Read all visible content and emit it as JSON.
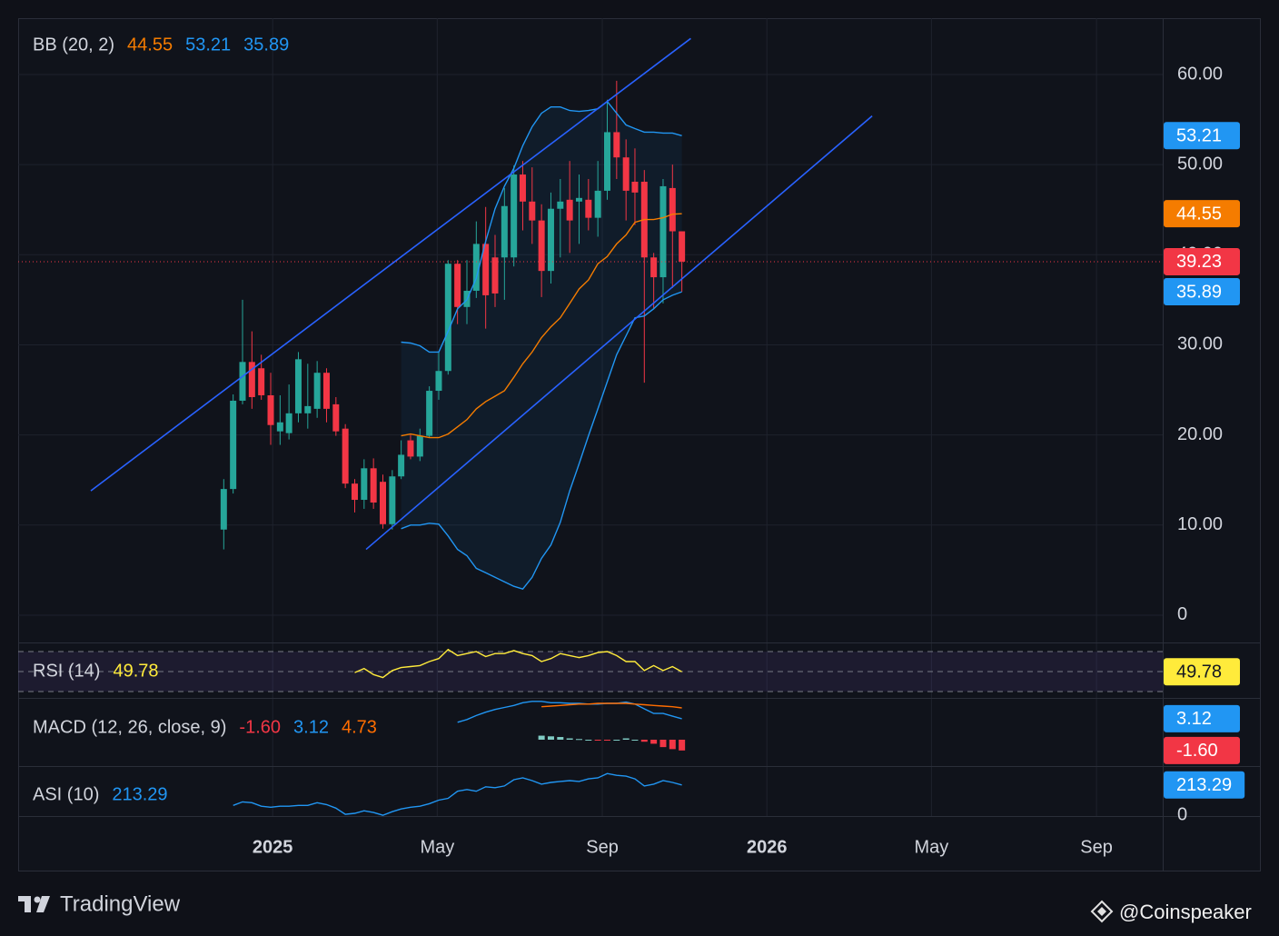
{
  "chart_data": [
    {
      "type": "candlestick",
      "title": "BB (20, 2)",
      "x": [
        2024.901,
        2024.92,
        2024.939,
        2024.958,
        2024.977,
        2024.996,
        2025.015,
        2025.033,
        2025.052,
        2025.071,
        2025.09,
        2025.109,
        2025.128,
        2025.147,
        2025.166,
        2025.185,
        2025.204,
        2025.223,
        2025.242,
        2025.26,
        2025.279,
        2025.298,
        2025.317,
        2025.336,
        2025.355,
        2025.374,
        2025.393,
        2025.412,
        2025.431,
        2025.45,
        2025.469,
        2025.488,
        2025.506,
        2025.525,
        2025.544,
        2025.563,
        2025.582,
        2025.601,
        2025.62,
        2025.639,
        2025.658,
        2025.677,
        2025.696,
        2025.715,
        2025.733,
        2025.752,
        2025.771,
        2025.79,
        2025.809,
        2025.828
      ],
      "open": [
        9.5,
        14.0,
        23.8,
        28.1,
        27.4,
        24.4,
        20.4,
        20.2,
        22.4,
        22.4,
        22.9,
        26.9,
        23.4,
        20.7,
        14.6,
        12.8,
        16.3,
        14.8,
        10.1,
        15.4,
        19.4,
        17.6,
        19.9,
        24.9,
        27.1,
        39.0,
        34.2,
        36.0,
        41.2,
        39.7,
        39.7,
        39.7,
        48.9,
        45.9,
        43.8,
        38.2,
        45.1,
        46.1,
        45.9,
        46.1,
        44.1,
        47.1,
        53.6,
        50.8,
        48.1,
        48.1,
        39.7,
        37.5,
        47.4,
        42.6
      ],
      "high": [
        15.1,
        24.5,
        35.0,
        31.5,
        28.9,
        26.9,
        24.4,
        25.6,
        29.2,
        27.9,
        28.2,
        27.4,
        24.2,
        21.2,
        15.1,
        17.3,
        17.4,
        15.6,
        16.1,
        19.4,
        20.0,
        20.7,
        25.4,
        29.2,
        39.4,
        39.4,
        39.4,
        43.7,
        45.3,
        42.2,
        47.4,
        49.9,
        50.4,
        49.7,
        45.6,
        46.9,
        48.4,
        50.4,
        48.9,
        48.4,
        50.4,
        57.2,
        59.3,
        52.8,
        51.8,
        49.4,
        40.2,
        48.4,
        50.0,
        42.6
      ],
      "low": [
        7.3,
        13.5,
        23.4,
        22.9,
        23.9,
        18.9,
        18.9,
        19.5,
        21.4,
        20.7,
        21.9,
        21.4,
        19.9,
        14.1,
        11.4,
        11.8,
        11.8,
        9.6,
        9.5,
        15.1,
        17.3,
        17.1,
        19.7,
        23.9,
        26.7,
        32.3,
        32.3,
        35.2,
        31.8,
        34.2,
        35.0,
        38.7,
        42.7,
        41.2,
        35.3,
        36.8,
        39.7,
        40.2,
        41.2,
        42.7,
        42.0,
        46.1,
        48.4,
        43.8,
        43.3,
        25.8,
        34.0,
        34.6,
        36.3,
        35.9
      ],
      "close": [
        14.0,
        23.8,
        28.1,
        24.2,
        24.4,
        21.1,
        21.4,
        22.4,
        28.4,
        23.2,
        26.9,
        22.9,
        20.4,
        14.6,
        12.8,
        16.3,
        12.5,
        10.1,
        15.4,
        17.8,
        17.6,
        19.9,
        24.9,
        27.1,
        39.0,
        34.2,
        36.0,
        41.2,
        35.5,
        35.7,
        45.4,
        48.9,
        45.9,
        43.8,
        38.2,
        45.1,
        45.9,
        43.8,
        46.3,
        44.1,
        47.1,
        53.6,
        50.8,
        47.1,
        46.9,
        39.7,
        37.5,
        47.6,
        42.6,
        39.23
      ],
      "up_color": "#26a69a",
      "down_color": "#f23645",
      "last_price_badge": true,
      "series": [
        {
          "color": "#f57c00",
          "badge": true,
          "values": [
            null,
            null,
            null,
            null,
            null,
            null,
            null,
            null,
            null,
            null,
            null,
            null,
            null,
            null,
            null,
            null,
            null,
            null,
            null,
            19.9,
            20.1,
            19.9,
            19.7,
            19.7,
            20.1,
            20.9,
            21.7,
            22.9,
            23.7,
            24.3,
            24.9,
            26.4,
            27.9,
            29.2,
            30.8,
            32.0,
            33.0,
            34.6,
            36.2,
            37.2,
            39.0,
            39.8,
            41.2,
            42.2,
            43.6,
            43.9,
            43.9,
            44.1,
            44.5,
            44.55
          ]
        },
        {
          "color": "#2196f3",
          "badge": true,
          "values": [
            null,
            null,
            null,
            null,
            null,
            null,
            null,
            null,
            null,
            null,
            null,
            null,
            null,
            null,
            null,
            null,
            null,
            null,
            null,
            30.3,
            30.2,
            29.9,
            29.2,
            29.2,
            31.5,
            34.0,
            35.0,
            37.4,
            41.5,
            45.1,
            47.6,
            49.6,
            52.1,
            54.2,
            55.7,
            56.4,
            56.4,
            56.0,
            55.9,
            56.0,
            56.2,
            57.0,
            55.7,
            54.4,
            54.0,
            53.6,
            53.6,
            53.5,
            53.5,
            53.21
          ]
        },
        {
          "color": "#2196f3",
          "badge": true,
          "values": [
            null,
            null,
            null,
            null,
            null,
            null,
            null,
            null,
            null,
            null,
            null,
            null,
            null,
            null,
            null,
            null,
            null,
            null,
            null,
            9.6,
            10.0,
            10.0,
            10.2,
            10.1,
            8.8,
            7.3,
            6.6,
            5.2,
            4.7,
            4.2,
            3.7,
            3.2,
            2.9,
            4.2,
            6.3,
            7.8,
            10.3,
            13.8,
            16.8,
            19.9,
            22.9,
            25.9,
            28.9,
            31.0,
            33.0,
            33.2,
            34.0,
            35.0,
            35.5,
            35.89
          ]
        }
      ],
      "band_color": "rgba(33,150,243,0.07)",
      "trend_lines": [
        {
          "x": [
            2024.632,
            2025.846
          ],
          "y": [
            13.8,
            64.0
          ],
          "color": "#2962ff"
        },
        {
          "x": [
            2025.189,
            2026.213
          ],
          "y": [
            7.3,
            55.4
          ],
          "color": "#2962ff"
        }
      ],
      "xlim": [
        2024.485,
        2026.801
      ],
      "xticks": [
        {
          "value": 2025,
          "label": "2025"
        },
        {
          "value": 2025.333,
          "label": "May"
        },
        {
          "value": 2025.667,
          "label": "Sep"
        },
        {
          "value": 2026,
          "label": "2026"
        },
        {
          "value": 2026.333,
          "label": "May"
        },
        {
          "value": 2026.667,
          "label": "Sep"
        }
      ],
      "ylim": [
        -3.03,
        66.25
      ],
      "yticks": [
        {
          "value": 60,
          "label": "60.00"
        },
        {
          "value": 50,
          "label": "50.00"
        },
        {
          "value": 40,
          "label": "40.00"
        },
        {
          "value": 30,
          "label": "30.00"
        },
        {
          "value": 20,
          "label": "20.00"
        },
        {
          "value": 10,
          "label": "10.00"
        },
        0
      ],
      "grid": true
    },
    {
      "type": "line",
      "title": "RSI (14)",
      "series": [
        {
          "color": "#ffeb3b",
          "badge": true,
          "values": [
            null,
            null,
            null,
            null,
            null,
            null,
            null,
            null,
            null,
            null,
            null,
            null,
            null,
            null,
            49,
            53,
            47,
            44,
            51,
            54,
            55,
            56,
            60,
            63,
            72,
            66,
            68,
            70,
            65,
            68,
            68,
            71,
            68,
            66,
            60,
            63,
            68,
            66,
            64,
            66,
            69,
            70,
            66,
            60,
            60,
            51,
            56,
            51,
            55,
            49.78
          ]
        }
      ],
      "levels": [
        70,
        50,
        30
      ],
      "band_color": "rgba(126,87,194,0.12)",
      "ylim": [
        23.6,
        78.2
      ]
    },
    {
      "type": "macd",
      "title": "MACD (12, 26, close, 9)",
      "series": [
        {
          "type": "histogram",
          "color": "#f23645",
          "up_color": "#80cbc4",
          "down_color": "#f23645",
          "badge": true,
          "values": [
            null,
            null,
            null,
            null,
            null,
            null,
            null,
            null,
            null,
            null,
            null,
            null,
            null,
            null,
            null,
            null,
            null,
            null,
            null,
            null,
            null,
            null,
            null,
            null,
            null,
            null,
            null,
            null,
            null,
            null,
            null,
            null,
            null,
            null,
            0.6,
            0.5,
            0.4,
            0.2,
            0.1,
            0.0,
            -0.1,
            -0.1,
            0.0,
            0.2,
            0.0,
            -0.3,
            -0.6,
            -1.1,
            -1.4,
            -1.6
          ],
          "value_labels": [
            null,
            null,
            null,
            null,
            null,
            null,
            null,
            null,
            null,
            null,
            null,
            null,
            null,
            null,
            null,
            null,
            null,
            null,
            null,
            null,
            null,
            null,
            null,
            null,
            null,
            null,
            null,
            null,
            null,
            null,
            null,
            null,
            null,
            null,
            null,
            null,
            null,
            null,
            null,
            null,
            null,
            null,
            null,
            null,
            null,
            null,
            null,
            null,
            null,
            "-1.60"
          ]
        },
        {
          "type": "line",
          "color": "#2196f3",
          "badge": true,
          "values": [
            null,
            null,
            null,
            null,
            null,
            null,
            null,
            null,
            null,
            null,
            null,
            null,
            null,
            null,
            null,
            null,
            null,
            null,
            null,
            null,
            null,
            null,
            null,
            null,
            null,
            2.6,
            3.0,
            3.6,
            4.1,
            4.5,
            4.8,
            5.1,
            5.5,
            5.7,
            5.7,
            5.5,
            5.5,
            5.4,
            5.4,
            5.3,
            5.3,
            5.4,
            5.4,
            5.6,
            5.3,
            4.6,
            3.9,
            3.9,
            3.5,
            3.12
          ]
        },
        {
          "type": "line",
          "color": "#ff6d00",
          "values": [
            null,
            null,
            null,
            null,
            null,
            null,
            null,
            null,
            null,
            null,
            null,
            null,
            null,
            null,
            null,
            null,
            null,
            null,
            null,
            null,
            null,
            null,
            null,
            null,
            null,
            null,
            null,
            null,
            null,
            null,
            null,
            null,
            null,
            null,
            4.9,
            5.0,
            5.1,
            5.2,
            5.3,
            5.3,
            5.4,
            5.4,
            5.4,
            5.4,
            5.3,
            5.2,
            5.1,
            5.0,
            4.9,
            4.73
          ]
        }
      ],
      "ylim": [
        -3.92,
        6.08
      ]
    },
    {
      "type": "line",
      "title": "ASI (10)",
      "series": [
        {
          "color": "#2196f3",
          "badge": true,
          "values": [
            null,
            69,
            94,
            88,
            63,
            56,
            63,
            63,
            69,
            69,
            88,
            75,
            50,
            6,
            13,
            31,
            19,
            0,
            25,
            44,
            56,
            63,
            81,
            106,
            119,
            169,
            181,
            169,
            200,
            194,
            206,
            250,
            263,
            244,
            219,
            231,
            238,
            244,
            238,
            256,
            263,
            294,
            281,
            275,
            256,
            206,
            219,
            244,
            231,
            213.29
          ]
        }
      ],
      "ylim": [
        -6,
        340
      ],
      "yticks": [
        0
      ]
    }
  ],
  "footer": {
    "brand": "TradingView",
    "watermark": "@Coinspeaker"
  }
}
